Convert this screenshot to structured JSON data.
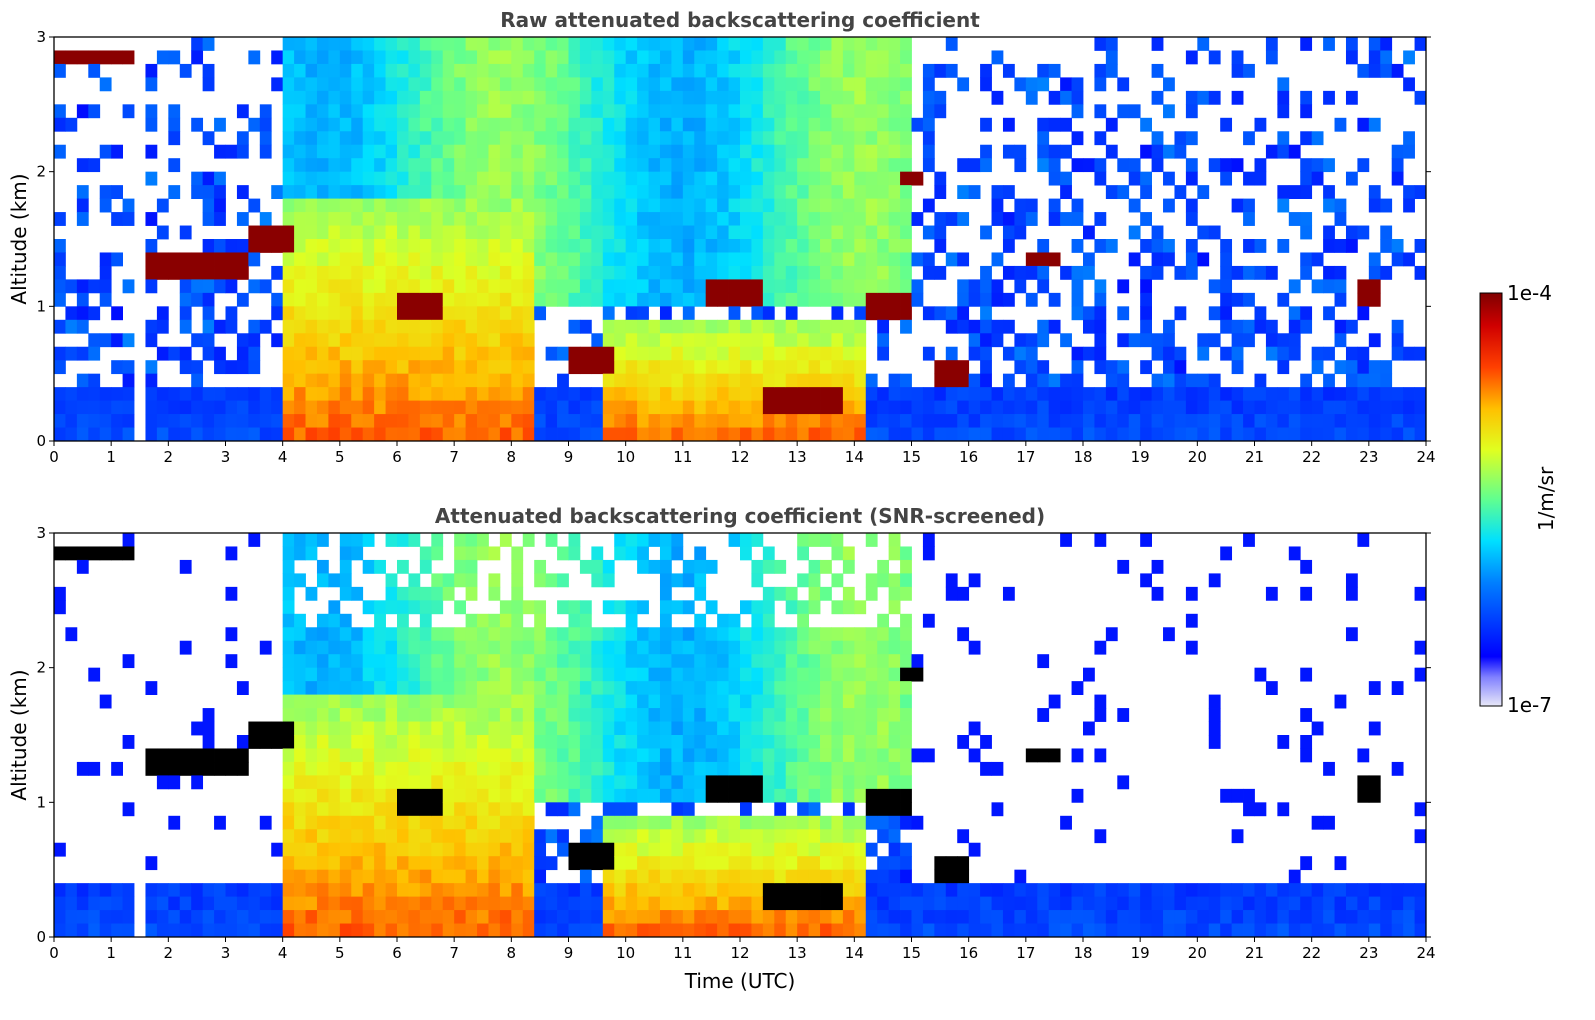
{
  "chart_data": [
    {
      "type": "heatmap",
      "title": "Raw attenuated backscattering coefficient",
      "xlabel": "",
      "ylabel": "Altitude (km)",
      "xlim": [
        0,
        24
      ],
      "ylim": [
        0,
        3
      ],
      "xticks": [
        "0",
        "1",
        "2",
        "3",
        "4",
        "5",
        "6",
        "7",
        "8",
        "9",
        "10",
        "11",
        "12",
        "13",
        "14",
        "15",
        "16",
        "17",
        "18",
        "19",
        "20",
        "21",
        "22",
        "23",
        "24"
      ],
      "yticks": [
        "0",
        "1",
        "2",
        "3"
      ],
      "screened": false,
      "data_gaps_hours": [
        1.45,
        1.55
      ],
      "cloud_layers": [
        {
          "t_start": 0.0,
          "t_end": 1.4,
          "alt_km": 2.85
        },
        {
          "t_start": 1.55,
          "t_end": 3.4,
          "alt_km": 1.28
        },
        {
          "t_start": 3.4,
          "t_end": 4.1,
          "alt_km": 1.5
        },
        {
          "t_start": 6.0,
          "t_end": 6.7,
          "alt_km": 1.02
        },
        {
          "t_start": 9.0,
          "t_end": 9.7,
          "alt_km": 0.6
        },
        {
          "t_start": 11.5,
          "t_end": 12.3,
          "alt_km": 1.12
        },
        {
          "t_start": 12.5,
          "t_end": 13.8,
          "alt_km": 0.3
        },
        {
          "t_start": 14.3,
          "t_end": 14.9,
          "alt_km": 1.0
        },
        {
          "t_start": 14.8,
          "t_end": 15.2,
          "alt_km": 1.95
        },
        {
          "t_start": 15.3,
          "t_end": 16.0,
          "alt_km": 0.5
        },
        {
          "t_start": 17.0,
          "t_end": 17.6,
          "alt_km": 1.35
        },
        {
          "t_start": 22.8,
          "t_end": 23.1,
          "alt_km": 1.13
        }
      ],
      "aerosol_layers": [
        {
          "t_start": 4.0,
          "t_end": 8.3,
          "top_km": 1.8,
          "value": "1e-5"
        },
        {
          "t_start": 9.7,
          "t_end": 14.2,
          "top_km": 0.9,
          "value": "3e-5"
        }
      ]
    },
    {
      "type": "heatmap",
      "title": "Attenuated backscattering coefficient (SNR-screened)",
      "xlabel": "Time (UTC)",
      "ylabel": "Altitude (km)",
      "xlim": [
        0,
        24
      ],
      "ylim": [
        0,
        3
      ],
      "xticks": [
        "0",
        "1",
        "2",
        "3",
        "4",
        "5",
        "6",
        "7",
        "8",
        "9",
        "10",
        "11",
        "12",
        "13",
        "14",
        "15",
        "16",
        "17",
        "18",
        "19",
        "20",
        "21",
        "22",
        "23",
        "24"
      ],
      "yticks": [
        "0",
        "1",
        "2",
        "3"
      ],
      "screened": true
    }
  ],
  "colorbar": {
    "label": "1/m/sr",
    "max_label": "1e-4",
    "min_label": "1e-7",
    "colormap": "jet",
    "scale": "log",
    "range": [
      1e-07,
      0.0001
    ],
    "min_color": "#e6e6f5",
    "max_color": "#800000"
  }
}
